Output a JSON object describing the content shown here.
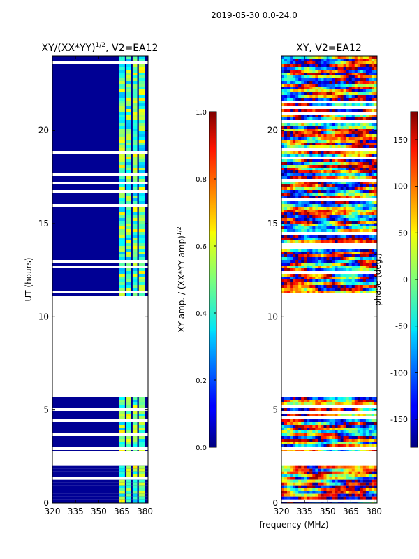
{
  "figure": {
    "suptitle": "2019-05-30 0.0-24.0",
    "shared_xlabel": "frequency (MHz)"
  },
  "chart_data": [
    {
      "type": "heatmap",
      "title_base": "XY/(XX*YY)",
      "title_exp": "1/2",
      "title_suffix": ", V2=EA12",
      "ylabel": "UT (hours)",
      "xlim": [
        320,
        382
      ],
      "ylim": [
        0,
        24
      ],
      "x_ticks": [
        "320",
        "335",
        "350",
        "365",
        "380"
      ],
      "x_tick_values": [
        320,
        335,
        350,
        365,
        380
      ],
      "y_ticks": [
        "0",
        "5",
        "10",
        "15",
        "20"
      ],
      "y_tick_values": [
        0,
        5,
        10,
        15,
        20
      ],
      "data_bands_hours": [
        [
          0,
          2.0
        ],
        [
          2.8,
          5.7
        ],
        [
          11.1,
          24.0
        ]
      ],
      "bright_channels_mhz": [
        [
          363,
          367
        ],
        [
          368,
          371
        ],
        [
          372,
          375
        ],
        [
          376,
          380
        ]
      ],
      "colorbar": {
        "label_base": "XY amp. / (XX*YY amp)",
        "label_exp": "1/2",
        "range": [
          0,
          1
        ],
        "ticks": [
          "0.0",
          "0.2",
          "0.4",
          "0.6",
          "0.8",
          "1.0"
        ],
        "tick_values": [
          0,
          0.2,
          0.4,
          0.6,
          0.8,
          1.0
        ]
      }
    },
    {
      "type": "heatmap",
      "title": "XY, V2=EA12",
      "xlim": [
        320,
        382
      ],
      "ylim": [
        0,
        24
      ],
      "x_ticks": [
        "320",
        "335",
        "350",
        "365",
        "380"
      ],
      "x_tick_values": [
        320,
        335,
        350,
        365,
        380
      ],
      "y_ticks": [
        "0",
        "5",
        "10",
        "15",
        "20"
      ],
      "y_tick_values": [
        0,
        5,
        10,
        15,
        20
      ],
      "data_bands_hours": [
        [
          0,
          2.0
        ],
        [
          2.8,
          5.7
        ],
        [
          11.1,
          24.0
        ]
      ],
      "colorbar": {
        "label": "phase (deg.)",
        "range": [
          -180,
          180
        ],
        "ticks": [
          "-150",
          "-100",
          "-50",
          "0",
          "50",
          "100",
          "150"
        ],
        "tick_values": [
          -150,
          -100,
          -50,
          0,
          50,
          100,
          150
        ]
      }
    }
  ]
}
